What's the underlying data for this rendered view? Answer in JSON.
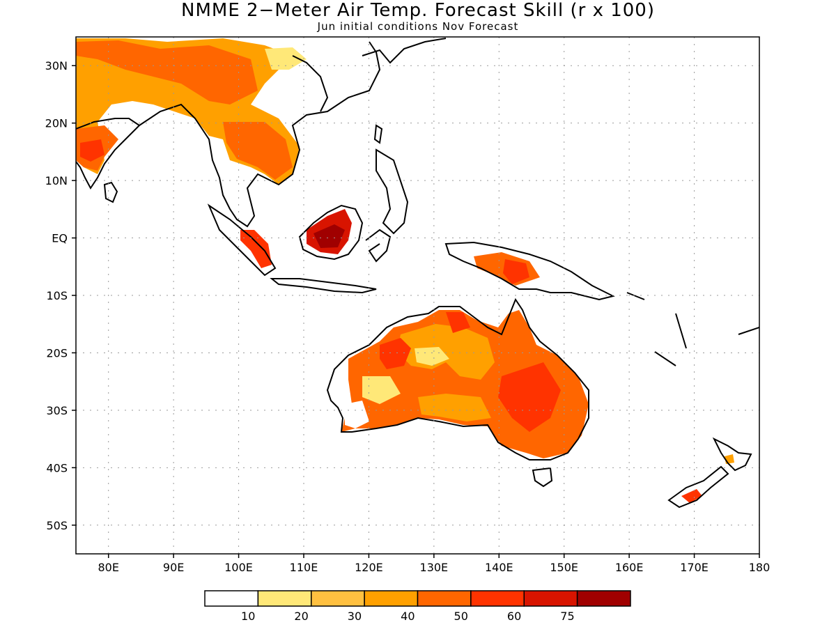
{
  "title": "NMME 2−Meter Air Temp. Forecast Skill (r x 100)",
  "subtitle": "Jun initial conditions  Nov Forecast",
  "map": {
    "lon_range": [
      75,
      180
    ],
    "lat_range": [
      -55,
      35
    ],
    "grid": true
  },
  "axes": {
    "lat_ticks": [
      "30N",
      "20N",
      "10N",
      "EQ",
      "10S",
      "20S",
      "30S",
      "40S",
      "50S"
    ],
    "lat_values": [
      30,
      20,
      10,
      0,
      -10,
      -20,
      -30,
      -40,
      -50
    ],
    "lon_ticks": [
      "80E",
      "90E",
      "100E",
      "110E",
      "120E",
      "130E",
      "140E",
      "150E",
      "160E",
      "170E",
      "180"
    ],
    "lon_values": [
      80,
      90,
      100,
      110,
      120,
      130,
      140,
      150,
      160,
      170,
      180
    ]
  },
  "colorbar": {
    "labels": [
      "10",
      "20",
      "30",
      "40",
      "50",
      "60",
      "75"
    ],
    "colors": [
      "#ffffff",
      "#ffe878",
      "#ffc040",
      "#ffa000",
      "#ff6600",
      "#ff3300",
      "#d81400",
      "#a00000"
    ]
  }
}
